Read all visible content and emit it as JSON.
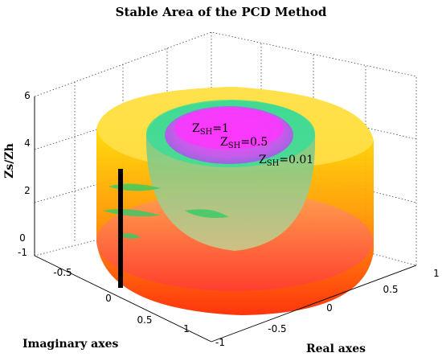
{
  "chart_data": {
    "type": "surface3d",
    "title": "Stable Area of the PCD Method",
    "zlabel": "Zs/Zh",
    "xlabel": "Real axes",
    "ylabel": "Imaginary axes",
    "zticks": [
      "0",
      "2",
      "4",
      "6"
    ],
    "xticks": [
      "-1",
      "-0.5",
      "0",
      "0.5",
      "1"
    ],
    "yticks": [
      "1",
      "0.5",
      "0",
      "-0.5",
      "-1"
    ],
    "zlim": [
      0,
      6
    ],
    "xlim": [
      -1,
      1
    ],
    "ylim": [
      -1,
      1
    ],
    "grid": true,
    "annotations": [
      {
        "base": "Z",
        "sub": "SH",
        "text": "=1"
      },
      {
        "base": "Z",
        "sub": "SH",
        "text": "=0.5"
      },
      {
        "base": "Z",
        "sub": "SH",
        "text": "=0.01"
      }
    ],
    "surfaces": [
      {
        "label": "Z_SH=0.01",
        "radius": 1.0,
        "height": 6
      },
      {
        "label": "Z_SH=0.5",
        "radius": 0.55,
        "height": 6
      },
      {
        "label": "Z_SH=1",
        "radius": 0.35,
        "height": 6
      }
    ],
    "colors": {
      "low": "#ff2200",
      "mid": "#ffcc00",
      "high": "#ff33ff",
      "green": "#33dd88",
      "marker": "#000000"
    }
  }
}
